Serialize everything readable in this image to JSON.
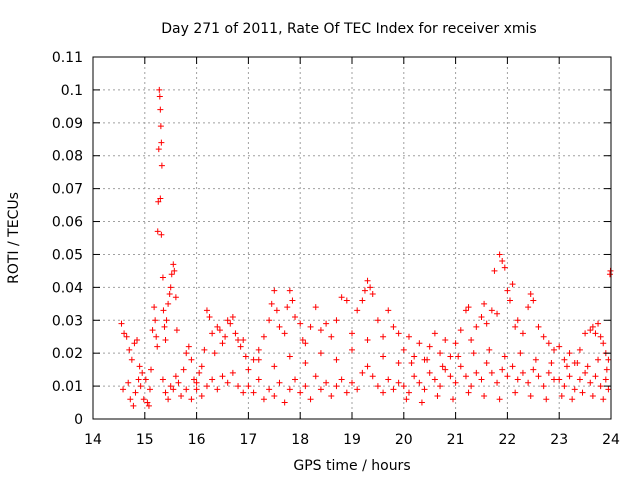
{
  "chart_data": {
    "type": "scatter",
    "title": "Day 271 of 2011, Rate Of TEC Index for receiver xmis",
    "xlabel": "GPS time / hours",
    "ylabel": "ROTI / TECUs",
    "xlim": [
      14,
      24
    ],
    "ylim": [
      0,
      0.11
    ],
    "xticks": [
      "14",
      "15",
      "16",
      "17",
      "18",
      "19",
      "20",
      "21",
      "22",
      "23",
      "24"
    ],
    "yticks": [
      "0",
      "0.01",
      "0.02",
      "0.03",
      "0.04",
      "0.05",
      "0.06",
      "0.07",
      "0.08",
      "0.09",
      "0.1",
      "0.11"
    ],
    "grid": true,
    "marker": "plus",
    "color": "#ff0000",
    "points": [
      [
        14.55,
        0.029
      ],
      [
        14.6,
        0.026
      ],
      [
        14.65,
        0.025
      ],
      [
        14.7,
        0.021
      ],
      [
        14.75,
        0.018
      ],
      [
        14.8,
        0.023
      ],
      [
        14.85,
        0.024
      ],
      [
        14.9,
        0.016
      ],
      [
        14.95,
        0.014
      ],
      [
        14.58,
        0.009
      ],
      [
        14.68,
        0.011
      ],
      [
        14.72,
        0.006
      ],
      [
        14.78,
        0.004
      ],
      [
        14.82,
        0.008
      ],
      [
        14.88,
        0.012
      ],
      [
        14.92,
        0.01
      ],
      [
        14.98,
        0.006
      ],
      [
        15.02,
        0.012
      ],
      [
        15.05,
        0.005
      ],
      [
        15.08,
        0.004
      ],
      [
        15.1,
        0.009
      ],
      [
        15.12,
        0.015
      ],
      [
        15.15,
        0.027
      ],
      [
        15.18,
        0.034
      ],
      [
        15.2,
        0.03
      ],
      [
        15.22,
        0.025
      ],
      [
        15.24,
        0.022
      ],
      [
        15.25,
        0.057
      ],
      [
        15.26,
        0.066
      ],
      [
        15.27,
        0.082
      ],
      [
        15.28,
        0.1
      ],
      [
        15.29,
        0.098
      ],
      [
        15.3,
        0.094
      ],
      [
        15.31,
        0.089
      ],
      [
        15.32,
        0.084
      ],
      [
        15.33,
        0.077
      ],
      [
        15.3,
        0.067
      ],
      [
        15.32,
        0.056
      ],
      [
        15.35,
        0.043
      ],
      [
        15.36,
        0.033
      ],
      [
        15.38,
        0.028
      ],
      [
        15.4,
        0.024
      ],
      [
        15.42,
        0.03
      ],
      [
        15.45,
        0.035
      ],
      [
        15.48,
        0.038
      ],
      [
        15.5,
        0.04
      ],
      [
        15.52,
        0.044
      ],
      [
        15.55,
        0.047
      ],
      [
        15.57,
        0.045
      ],
      [
        15.6,
        0.037
      ],
      [
        15.62,
        0.027
      ],
      [
        15.35,
        0.012
      ],
      [
        15.4,
        0.008
      ],
      [
        15.45,
        0.006
      ],
      [
        15.5,
        0.01
      ],
      [
        15.55,
        0.009
      ],
      [
        15.6,
        0.013
      ],
      [
        15.65,
        0.011
      ],
      [
        15.7,
        0.007
      ],
      [
        15.75,
        0.015
      ],
      [
        15.8,
        0.02
      ],
      [
        15.85,
        0.022
      ],
      [
        15.9,
        0.018
      ],
      [
        15.95,
        0.012
      ],
      [
        16.0,
        0.009
      ],
      [
        16.05,
        0.014
      ],
      [
        16.1,
        0.016
      ],
      [
        16.15,
        0.021
      ],
      [
        16.2,
        0.033
      ],
      [
        16.25,
        0.031
      ],
      [
        16.3,
        0.026
      ],
      [
        16.35,
        0.02
      ],
      [
        16.4,
        0.028
      ],
      [
        16.45,
        0.027
      ],
      [
        16.5,
        0.023
      ],
      [
        16.55,
        0.025
      ],
      [
        16.6,
        0.03
      ],
      [
        16.65,
        0.029
      ],
      [
        16.7,
        0.031
      ],
      [
        16.75,
        0.026
      ],
      [
        16.8,
        0.024
      ],
      [
        16.85,
        0.022
      ],
      [
        16.9,
        0.024
      ],
      [
        16.95,
        0.019
      ],
      [
        15.8,
        0.009
      ],
      [
        15.9,
        0.006
      ],
      [
        16.0,
        0.011
      ],
      [
        16.1,
        0.007
      ],
      [
        16.2,
        0.01
      ],
      [
        16.3,
        0.012
      ],
      [
        16.4,
        0.009
      ],
      [
        16.5,
        0.013
      ],
      [
        16.6,
        0.011
      ],
      [
        16.7,
        0.014
      ],
      [
        16.8,
        0.01
      ],
      [
        16.9,
        0.008
      ],
      [
        17.0,
        0.015
      ],
      [
        17.1,
        0.018
      ],
      [
        17.2,
        0.021
      ],
      [
        17.3,
        0.025
      ],
      [
        17.4,
        0.03
      ],
      [
        17.45,
        0.035
      ],
      [
        17.5,
        0.039
      ],
      [
        17.55,
        0.033
      ],
      [
        17.6,
        0.028
      ],
      [
        17.7,
        0.026
      ],
      [
        17.75,
        0.034
      ],
      [
        17.8,
        0.039
      ],
      [
        17.85,
        0.036
      ],
      [
        17.9,
        0.031
      ],
      [
        18.0,
        0.029
      ],
      [
        18.05,
        0.024
      ],
      [
        18.1,
        0.023
      ],
      [
        18.2,
        0.028
      ],
      [
        18.3,
        0.034
      ],
      [
        18.4,
        0.027
      ],
      [
        18.5,
        0.029
      ],
      [
        18.6,
        0.025
      ],
      [
        18.7,
        0.03
      ],
      [
        18.8,
        0.037
      ],
      [
        18.9,
        0.036
      ],
      [
        19.0,
        0.026
      ],
      [
        19.1,
        0.033
      ],
      [
        19.2,
        0.036
      ],
      [
        19.25,
        0.039
      ],
      [
        19.3,
        0.042
      ],
      [
        19.35,
        0.04
      ],
      [
        19.4,
        0.038
      ],
      [
        19.5,
        0.03
      ],
      [
        19.6,
        0.025
      ],
      [
        19.7,
        0.033
      ],
      [
        19.8,
        0.028
      ],
      [
        19.9,
        0.026
      ],
      [
        17.0,
        0.01
      ],
      [
        17.1,
        0.008
      ],
      [
        17.2,
        0.012
      ],
      [
        17.3,
        0.006
      ],
      [
        17.4,
        0.009
      ],
      [
        17.5,
        0.007
      ],
      [
        17.6,
        0.011
      ],
      [
        17.7,
        0.005
      ],
      [
        17.8,
        0.009
      ],
      [
        17.9,
        0.012
      ],
      [
        18.0,
        0.008
      ],
      [
        18.1,
        0.01
      ],
      [
        18.2,
        0.006
      ],
      [
        18.3,
        0.013
      ],
      [
        18.4,
        0.009
      ],
      [
        18.5,
        0.011
      ],
      [
        18.6,
        0.007
      ],
      [
        18.7,
        0.01
      ],
      [
        18.8,
        0.012
      ],
      [
        18.9,
        0.008
      ],
      [
        19.0,
        0.011
      ],
      [
        19.1,
        0.009
      ],
      [
        19.2,
        0.014
      ],
      [
        19.3,
        0.016
      ],
      [
        19.4,
        0.013
      ],
      [
        19.5,
        0.01
      ],
      [
        19.6,
        0.008
      ],
      [
        19.7,
        0.012
      ],
      [
        19.8,
        0.009
      ],
      [
        19.9,
        0.011
      ],
      [
        17.2,
        0.018
      ],
      [
        17.5,
        0.016
      ],
      [
        17.8,
        0.019
      ],
      [
        18.1,
        0.017
      ],
      [
        18.4,
        0.02
      ],
      [
        18.7,
        0.018
      ],
      [
        19.0,
        0.021
      ],
      [
        19.3,
        0.024
      ],
      [
        19.6,
        0.019
      ],
      [
        19.9,
        0.017
      ],
      [
        20.0,
        0.021
      ],
      [
        20.1,
        0.025
      ],
      [
        20.2,
        0.019
      ],
      [
        20.3,
        0.023
      ],
      [
        20.4,
        0.018
      ],
      [
        20.5,
        0.022
      ],
      [
        20.6,
        0.026
      ],
      [
        20.7,
        0.02
      ],
      [
        20.8,
        0.024
      ],
      [
        20.9,
        0.019
      ],
      [
        21.0,
        0.023
      ],
      [
        21.1,
        0.027
      ],
      [
        21.2,
        0.033
      ],
      [
        21.25,
        0.034
      ],
      [
        21.3,
        0.024
      ],
      [
        21.4,
        0.028
      ],
      [
        21.5,
        0.031
      ],
      [
        21.55,
        0.035
      ],
      [
        21.6,
        0.029
      ],
      [
        21.7,
        0.033
      ],
      [
        21.75,
        0.045
      ],
      [
        21.8,
        0.032
      ],
      [
        21.85,
        0.05
      ],
      [
        21.9,
        0.048
      ],
      [
        21.95,
        0.046
      ],
      [
        22.0,
        0.039
      ],
      [
        22.05,
        0.036
      ],
      [
        22.1,
        0.041
      ],
      [
        22.15,
        0.028
      ],
      [
        22.2,
        0.03
      ],
      [
        22.3,
        0.026
      ],
      [
        22.4,
        0.034
      ],
      [
        22.45,
        0.038
      ],
      [
        22.5,
        0.036
      ],
      [
        22.6,
        0.028
      ],
      [
        22.7,
        0.025
      ],
      [
        22.8,
        0.023
      ],
      [
        22.9,
        0.021
      ],
      [
        20.0,
        0.01
      ],
      [
        20.1,
        0.008
      ],
      [
        20.2,
        0.013
      ],
      [
        20.3,
        0.011
      ],
      [
        20.4,
        0.009
      ],
      [
        20.5,
        0.014
      ],
      [
        20.6,
        0.012
      ],
      [
        20.7,
        0.01
      ],
      [
        20.8,
        0.015
      ],
      [
        20.9,
        0.013
      ],
      [
        21.0,
        0.011
      ],
      [
        21.1,
        0.016
      ],
      [
        21.2,
        0.013
      ],
      [
        21.3,
        0.01
      ],
      [
        21.4,
        0.014
      ],
      [
        21.5,
        0.012
      ],
      [
        21.6,
        0.017
      ],
      [
        21.7,
        0.014
      ],
      [
        21.8,
        0.011
      ],
      [
        21.9,
        0.015
      ],
      [
        22.0,
        0.013
      ],
      [
        22.1,
        0.016
      ],
      [
        22.2,
        0.012
      ],
      [
        22.3,
        0.014
      ],
      [
        22.4,
        0.011
      ],
      [
        22.5,
        0.015
      ],
      [
        22.6,
        0.013
      ],
      [
        22.7,
        0.01
      ],
      [
        22.8,
        0.014
      ],
      [
        22.9,
        0.012
      ],
      [
        20.05,
        0.006
      ],
      [
        20.35,
        0.005
      ],
      [
        20.65,
        0.007
      ],
      [
        20.95,
        0.006
      ],
      [
        21.25,
        0.008
      ],
      [
        21.55,
        0.007
      ],
      [
        21.85,
        0.006
      ],
      [
        22.15,
        0.008
      ],
      [
        22.45,
        0.007
      ],
      [
        22.75,
        0.006
      ],
      [
        20.15,
        0.017
      ],
      [
        20.45,
        0.018
      ],
      [
        20.75,
        0.016
      ],
      [
        21.05,
        0.019
      ],
      [
        21.35,
        0.02
      ],
      [
        21.65,
        0.021
      ],
      [
        21.95,
        0.019
      ],
      [
        22.25,
        0.02
      ],
      [
        22.55,
        0.018
      ],
      [
        22.85,
        0.017
      ],
      [
        23.0,
        0.022
      ],
      [
        23.1,
        0.018
      ],
      [
        23.2,
        0.02
      ],
      [
        23.3,
        0.017
      ],
      [
        23.4,
        0.021
      ],
      [
        23.5,
        0.026
      ],
      [
        23.6,
        0.027
      ],
      [
        23.65,
        0.028
      ],
      [
        23.7,
        0.026
      ],
      [
        23.75,
        0.029
      ],
      [
        23.8,
        0.025
      ],
      [
        23.85,
        0.023
      ],
      [
        23.9,
        0.02
      ],
      [
        23.95,
        0.018
      ],
      [
        23.98,
        0.044
      ],
      [
        23.99,
        0.045
      ],
      [
        23.0,
        0.012
      ],
      [
        23.1,
        0.01
      ],
      [
        23.2,
        0.013
      ],
      [
        23.3,
        0.009
      ],
      [
        23.4,
        0.012
      ],
      [
        23.5,
        0.014
      ],
      [
        23.6,
        0.011
      ],
      [
        23.7,
        0.013
      ],
      [
        23.8,
        0.01
      ],
      [
        23.9,
        0.012
      ],
      [
        23.95,
        0.009
      ],
      [
        23.05,
        0.007
      ],
      [
        23.25,
        0.006
      ],
      [
        23.45,
        0.008
      ],
      [
        23.65,
        0.007
      ],
      [
        23.85,
        0.006
      ],
      [
        23.15,
        0.016
      ],
      [
        23.35,
        0.017
      ],
      [
        23.55,
        0.016
      ],
      [
        23.75,
        0.018
      ],
      [
        23.92,
        0.015
      ]
    ]
  }
}
